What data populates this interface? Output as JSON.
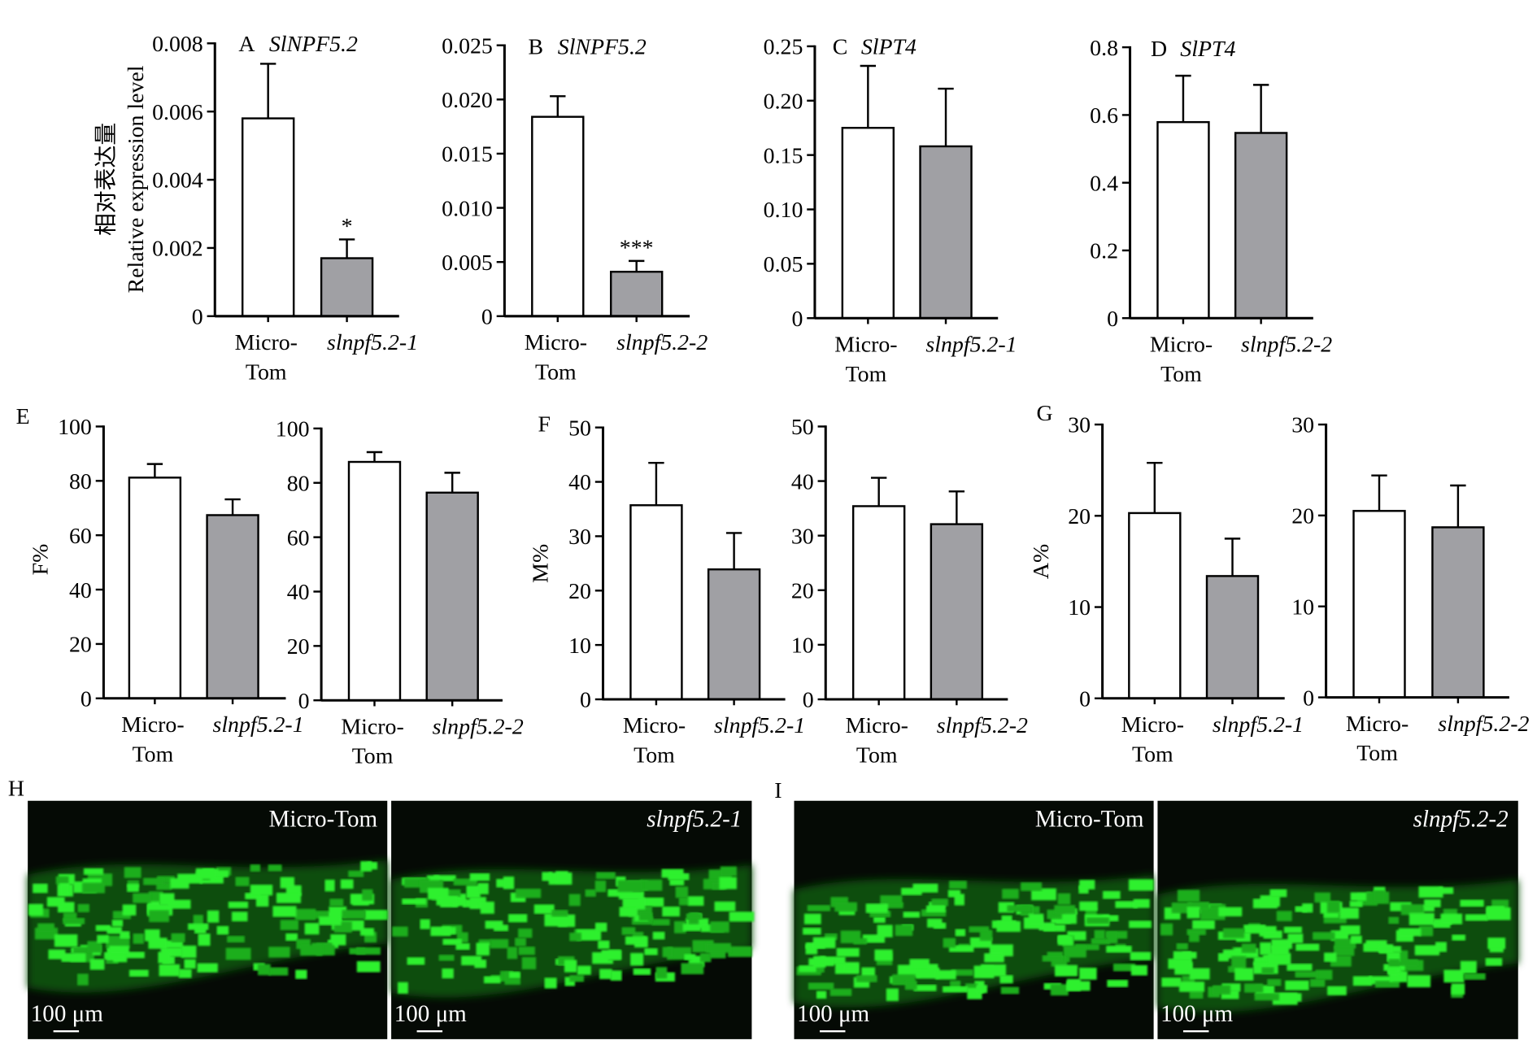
{
  "chart_data": [
    {
      "type": "bar",
      "panel": "A",
      "title": "SlNPF5.2",
      "ylabel": "相对表达量\nRelative expression level",
      "categories": [
        "Micro-\nTom",
        "slnpf5.2-1"
      ],
      "values": [
        0.0058,
        0.0017
      ],
      "errors": [
        0.0016,
        0.00055
      ],
      "significance": [
        null,
        "*"
      ],
      "colors": [
        "#ffffff",
        "#a0a0a4"
      ],
      "ylim": [
        0,
        0.008
      ],
      "yticks": [
        0,
        0.002,
        0.004,
        0.006,
        0.008
      ]
    },
    {
      "type": "bar",
      "panel": "B",
      "title": "SlNPF5.2",
      "categories": [
        "Micro-\nTom",
        "slnpf5.2-2"
      ],
      "values": [
        0.0184,
        0.0041
      ],
      "errors": [
        0.0019,
        0.001
      ],
      "significance": [
        null,
        "***"
      ],
      "colors": [
        "#ffffff",
        "#a0a0a4"
      ],
      "ylim": [
        0,
        0.025
      ],
      "yticks": [
        0,
        0.005,
        {
          "value": 0.01,
          "label": "0.010"
        },
        0.015,
        {
          "value": 0.02,
          "label": "0.020"
        },
        0.025
      ]
    },
    {
      "type": "bar",
      "panel": "C",
      "title": "SlPT4",
      "categories": [
        "Micro-\nTom",
        "slnpf5.2-1"
      ],
      "values": [
        0.175,
        0.158
      ],
      "errors": [
        0.057,
        0.053
      ],
      "colors": [
        "#ffffff",
        "#a0a0a4"
      ],
      "ylim": [
        0,
        0.25
      ],
      "yticks": [
        0,
        0.05,
        {
          "value": 0.1,
          "label": "0.10"
        },
        0.15,
        {
          "value": 0.2,
          "label": "0.20"
        },
        0.25
      ]
    },
    {
      "type": "bar",
      "panel": "D",
      "title": "SlPT4",
      "categories": [
        "Micro-\nTom",
        "slnpf5.2-2"
      ],
      "values": [
        0.579,
        0.547
      ],
      "errors": [
        0.137,
        0.142
      ],
      "colors": [
        "#ffffff",
        "#a0a0a4"
      ],
      "ylim": [
        0,
        0.8
      ],
      "yticks": [
        0,
        0.2,
        0.4,
        0.6,
        0.8
      ]
    },
    {
      "type": "bar",
      "panel": "E",
      "ylabel": "F%",
      "categories": [
        "Micro-\nTom",
        "slnpf5.2-1"
      ],
      "values": [
        81.2,
        67.4
      ],
      "errors": [
        5,
        5.8
      ],
      "colors": [
        "#ffffff",
        "#a0a0a4"
      ],
      "ylim": [
        0,
        100
      ],
      "yticks": [
        0,
        20,
        40,
        60,
        80,
        100
      ]
    },
    {
      "type": "bar",
      "categories": [
        "Micro-\nTom",
        "slnpf5.2-2"
      ],
      "values": [
        87.7,
        76.4
      ],
      "errors": [
        3.6,
        7.3
      ],
      "colors": [
        "#ffffff",
        "#a0a0a4"
      ],
      "ylim": [
        0,
        100
      ],
      "yticks": [
        0,
        20,
        40,
        60,
        80,
        100
      ]
    },
    {
      "type": "bar",
      "panel": "F",
      "ylabel": "M%",
      "categories": [
        "Micro-\nTom",
        "slnpf5.2-1"
      ],
      "values": [
        35.7,
        23.9
      ],
      "errors": [
        7.8,
        6.7
      ],
      "colors": [
        "#ffffff",
        "#a0a0a4"
      ],
      "ylim": [
        0,
        50
      ],
      "yticks": [
        0,
        10,
        20,
        30,
        40,
        50
      ]
    },
    {
      "type": "bar",
      "categories": [
        "Micro-\nTom",
        "slnpf5.2-2"
      ],
      "values": [
        35.4,
        32.1
      ],
      "errors": [
        5.2,
        6
      ],
      "colors": [
        "#ffffff",
        "#a0a0a4"
      ],
      "ylim": [
        0,
        50
      ],
      "yticks": [
        0,
        10,
        20,
        30,
        40,
        50
      ]
    },
    {
      "type": "bar",
      "panel": "G",
      "ylabel": "A%",
      "categories": [
        "Micro-\nTom",
        "slnpf5.2-1"
      ],
      "values": [
        20.3,
        13.4
      ],
      "errors": [
        5.5,
        4.1
      ],
      "colors": [
        "#ffffff",
        "#a0a0a4"
      ],
      "ylim": [
        0,
        30
      ],
      "yticks": [
        0,
        10,
        20,
        30
      ]
    },
    {
      "type": "bar",
      "categories": [
        "Micro-\nTom",
        "slnpf5.2-2"
      ],
      "values": [
        20.5,
        18.7
      ],
      "errors": [
        3.9,
        4.6
      ],
      "colors": [
        "#ffffff",
        "#a0a0a4"
      ],
      "ylim": [
        0,
        30
      ],
      "yticks": [
        0,
        10,
        20,
        30
      ]
    }
  ],
  "micrographs": [
    {
      "panel": "H",
      "images": [
        {
          "label": "Micro-Tom",
          "scale": "100 μm"
        },
        {
          "label": "slnpf5.2-1",
          "scale": "100 μm"
        }
      ]
    },
    {
      "panel": "I",
      "images": [
        {
          "label": "Micro-Tom",
          "scale": "100 μm"
        },
        {
          "label": "slnpf5.2-2",
          "scale": "100 μm"
        }
      ]
    }
  ]
}
